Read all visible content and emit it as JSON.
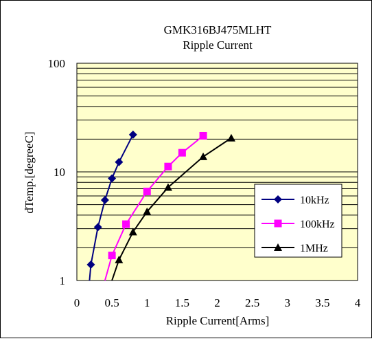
{
  "chart_data": {
    "type": "line",
    "title": "GMK316BJ475MLHT",
    "subtitle": "Ripple Current",
    "xlabel": "Ripple Current[Arms]",
    "ylabel": "dTemp.[degreeC]",
    "xlim": [
      0,
      4
    ],
    "ylim": [
      1,
      100
    ],
    "yscale": "log",
    "x_ticks": [
      "0",
      "0.5",
      "1",
      "1.5",
      "2",
      "2.5",
      "3",
      "3.5",
      "4"
    ],
    "y_ticks": [
      "1",
      "10",
      "100"
    ],
    "grid": true,
    "legend_position": "right",
    "plot_background": "#FFFFCC",
    "series": [
      {
        "name": "10kHz",
        "color": "#000080",
        "marker": "diamond",
        "x": [
          0.18,
          0.2,
          0.3,
          0.4,
          0.5,
          0.6,
          0.8
        ],
        "y": [
          1.0,
          1.4,
          3.1,
          5.5,
          8.7,
          12.3,
          22.0
        ]
      },
      {
        "name": "100kHz",
        "color": "#FF00FF",
        "marker": "square",
        "x": [
          0.4,
          0.5,
          0.7,
          1.0,
          1.3,
          1.5,
          1.8
        ],
        "y": [
          1.0,
          1.7,
          3.3,
          6.6,
          11.2,
          15.0,
          21.5
        ]
      },
      {
        "name": "1MHz",
        "color": "#000000",
        "marker": "triangle",
        "x": [
          0.5,
          0.6,
          0.8,
          1.0,
          1.3,
          1.8,
          2.2
        ],
        "y": [
          1.0,
          1.55,
          2.8,
          4.3,
          7.2,
          13.8,
          20.5
        ]
      }
    ]
  }
}
